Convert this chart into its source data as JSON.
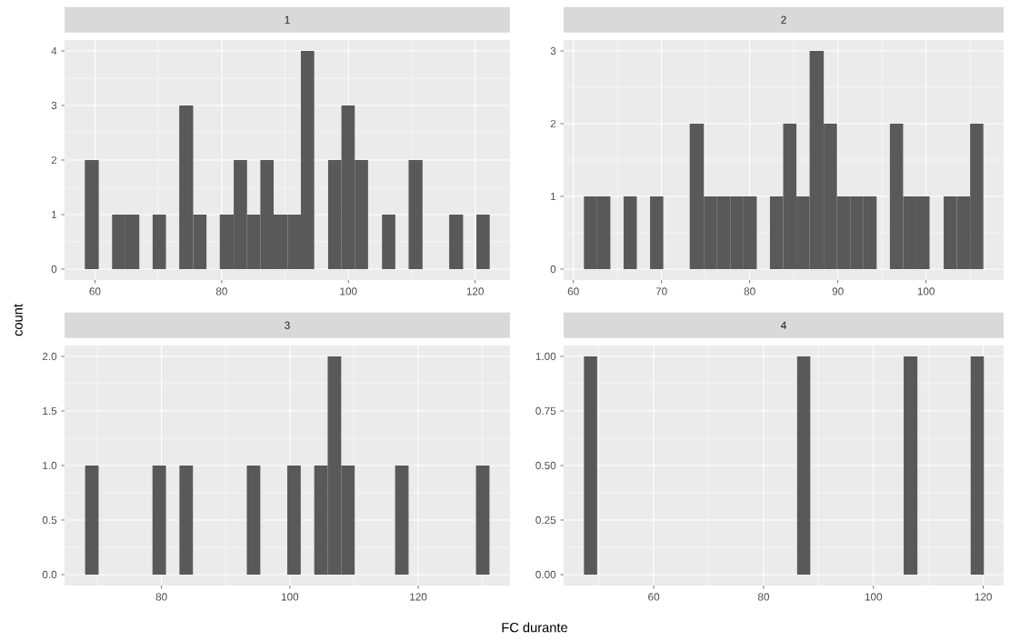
{
  "chart_data": [
    {
      "type": "histogram",
      "title": "1",
      "ylabel": "count",
      "color": "#595959",
      "grid": true,
      "bins": [
        58.4,
        60.6,
        62.7,
        64.8,
        67.0,
        69.1,
        71.2,
        73.3,
        75.5,
        77.6,
        79.7,
        81.9,
        84.0,
        86.1,
        88.2,
        90.4,
        92.5,
        94.6,
        96.8,
        98.9,
        101.0,
        103.1,
        105.3,
        107.4,
        109.5,
        111.7,
        115.9,
        118.1,
        120.2,
        122.3
      ],
      "values": [
        2,
        0,
        1,
        1,
        0,
        1,
        0,
        3,
        1,
        0,
        1,
        2,
        1,
        2,
        1,
        1,
        4,
        0,
        2,
        3,
        2,
        0,
        1,
        0,
        2,
        0,
        1,
        0,
        1
      ],
      "xlim": [
        55.2,
        125.5
      ],
      "ylim": [
        -0.2,
        4.2
      ],
      "xticks": [
        60,
        80,
        100,
        120
      ],
      "yticks": [
        0,
        1,
        2,
        3,
        4
      ]
    },
    {
      "type": "histogram",
      "title": "2",
      "color": "#595959",
      "grid": true,
      "bins": [
        61.2,
        62.7,
        64.2,
        65.7,
        67.2,
        68.7,
        70.2,
        73.2,
        74.8,
        76.3,
        77.8,
        79.3,
        80.8,
        82.3,
        83.8,
        85.3,
        86.8,
        88.4,
        89.9,
        91.4,
        92.9,
        94.4,
        95.9,
        97.4,
        98.9,
        100.4,
        102.0,
        103.5,
        105.0,
        106.5
      ],
      "values": [
        1,
        1,
        0,
        1,
        0,
        1,
        0,
        2,
        1,
        1,
        1,
        1,
        0,
        1,
        2,
        1,
        3,
        2,
        1,
        1,
        1,
        0,
        2,
        1,
        1,
        0,
        1,
        1,
        2
      ],
      "xlim": [
        58.9,
        108.8
      ],
      "ylim": [
        -0.15,
        3.15
      ],
      "xticks": [
        60,
        70,
        80,
        90,
        100
      ],
      "yticks": [
        0,
        1,
        2,
        3
      ]
    },
    {
      "type": "histogram",
      "title": "3",
      "xlabel": "FC durante",
      "color": "#595959",
      "grid": true,
      "bins": [
        68.1,
        70.2,
        78.6,
        80.7,
        82.8,
        84.9,
        93.3,
        95.4,
        99.6,
        101.7,
        103.8,
        105.9,
        108.0,
        110.1,
        116.4,
        118.5,
        129.0,
        131.1
      ],
      "values": [
        1,
        0,
        1,
        0,
        1,
        0,
        1,
        0,
        1,
        0,
        1,
        2,
        1,
        0,
        1,
        0,
        1
      ],
      "xlim": [
        64.9,
        134.3
      ],
      "ylim": [
        -0.1,
        2.1
      ],
      "xticks": [
        80,
        100,
        120
      ],
      "yticks": [
        {
          "value": 0,
          "label": "0.0"
        },
        {
          "value": 0.5,
          "label": "0.5"
        },
        {
          "value": 1,
          "label": "1.0"
        },
        {
          "value": 1.5,
          "label": "1.5"
        },
        {
          "value": 2,
          "label": "2.0"
        }
      ]
    },
    {
      "type": "histogram",
      "title": "4",
      "color": "#595959",
      "grid": true,
      "bins": [
        47.3,
        49.7,
        86.1,
        88.5,
        105.5,
        108.0,
        117.7,
        120.1
      ],
      "values": [
        1,
        0,
        1,
        0,
        1,
        0,
        1
      ],
      "xlim": [
        43.6,
        123.7
      ],
      "ylim": [
        -0.05,
        1.05
      ],
      "xticks": [
        60,
        80,
        100,
        120
      ],
      "yticks": [
        {
          "value": 0,
          "label": "0.00"
        },
        {
          "value": 0.25,
          "label": "0.25"
        },
        {
          "value": 0.5,
          "label": "0.50"
        },
        {
          "value": 0.75,
          "label": "0.75"
        },
        {
          "value": 1,
          "label": "1.00"
        }
      ]
    }
  ]
}
